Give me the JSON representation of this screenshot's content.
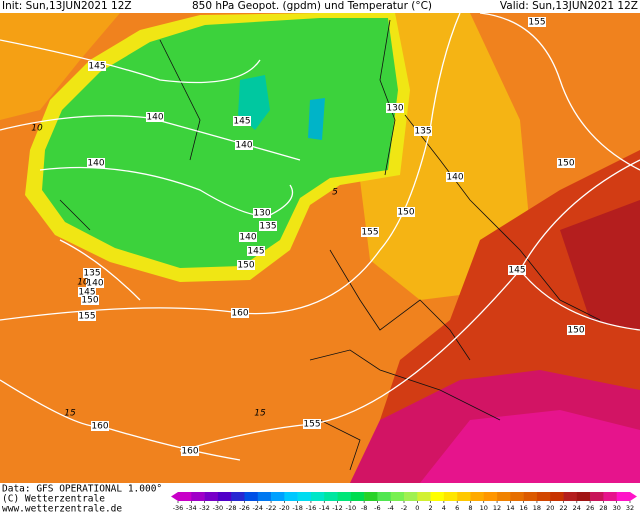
{
  "header": {
    "init": "Init: Sun,13JUN2021 12Z",
    "title": "850 hPa Geopot. (gpdm) und Temperatur (°C)",
    "valid": "Valid: Sun,13JUN2021 12Z"
  },
  "map": {
    "geopotential_labels": [
      145,
      140,
      145,
      140,
      140,
      130,
      135,
      140,
      145,
      150,
      135,
      140,
      145,
      150,
      155,
      160,
      155,
      150,
      140,
      135,
      130,
      155,
      150,
      145,
      150,
      160,
      160,
      155
    ],
    "temperature_labels": [
      10,
      10,
      5,
      15,
      15
    ]
  },
  "footer": {
    "source": "Data: GFS OPERATIONAL 1.000°",
    "copyright": "(C) Wetterzentrale",
    "url": "www.wetterzentrale.de"
  },
  "colorbar": {
    "ticks": [
      -36,
      -34,
      -32,
      -30,
      -28,
      -26,
      -24,
      -22,
      -20,
      -18,
      -16,
      -14,
      -12,
      -10,
      -8,
      -6,
      -4,
      -2,
      0,
      2,
      4,
      6,
      8,
      10,
      12,
      14,
      16,
      18,
      20,
      22,
      24,
      26,
      28,
      30,
      32
    ],
    "colors": [
      "#c800c8",
      "#a000c8",
      "#7800c8",
      "#5000c8",
      "#2828d2",
      "#0050e6",
      "#0078f0",
      "#00a0ff",
      "#00c8ff",
      "#00dcf0",
      "#00e6c8",
      "#00e6a0",
      "#00e678",
      "#00dc50",
      "#28d228",
      "#50e650",
      "#78f050",
      "#a0f050",
      "#d2f032",
      "#ffff00",
      "#ffe600",
      "#ffc800",
      "#ffaa00",
      "#ff9600",
      "#f08200",
      "#e66e00",
      "#dc5a00",
      "#d24600",
      "#c83200",
      "#b41e1e",
      "#a01414",
      "#c8145a",
      "#e6148c",
      "#ff14c8"
    ]
  }
}
